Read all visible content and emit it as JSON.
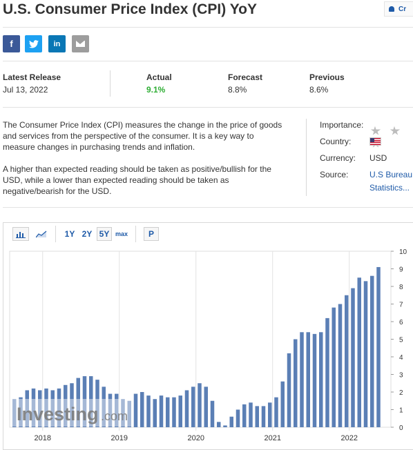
{
  "header": {
    "title": "U.S. Consumer Price Index (CPI) YoY",
    "alert_label": "Cr"
  },
  "share": {
    "facebook": "f",
    "twitter": "t",
    "linkedin": "in"
  },
  "release": {
    "latest_label": "Latest Release",
    "latest_value": "Jul 13, 2022",
    "actual_label": "Actual",
    "actual_value": "9.1%",
    "forecast_label": "Forecast",
    "forecast_value": "8.8%",
    "previous_label": "Previous",
    "previous_value": "8.6%"
  },
  "description": {
    "p1": "The Consumer Price Index (CPI) measures the change in the price of goods and services from the perspective of the consumer. It is a key way to measure changes in purchasing trends and inflation.",
    "p2": "A higher than expected reading should be taken as positive/bullish for the USD, while a lower than expected reading should be taken as negative/bearish for the USD."
  },
  "details": {
    "importance_label": "Importance:",
    "country_label": "Country:",
    "currency_label": "Currency:",
    "currency_value": "USD",
    "source_label": "Source:",
    "source_value_1": "U.S Bureau",
    "source_value_2": "Statistics..."
  },
  "toolbar": {
    "range_1y": "1Y",
    "range_2y": "2Y",
    "range_5y": "5Y",
    "range_max": "max",
    "p_button": "P",
    "selected_range": "5Y"
  },
  "watermark": {
    "brand": "Investing",
    "suffix": ".com"
  },
  "colors": {
    "bar": "#5b7fb5",
    "actual_green": "#2eae34",
    "link": "#1e5aa8"
  },
  "chart_data": {
    "type": "bar",
    "title": "",
    "x_tick_labels": [
      "2018",
      "2019",
      "2020",
      "2021",
      "2022"
    ],
    "x_tick_start_index": [
      5,
      17,
      29,
      41,
      53
    ],
    "y_ticks": [
      0,
      1,
      2,
      3,
      4,
      5,
      6,
      7,
      8,
      9,
      10
    ],
    "ylim": [
      0,
      10
    ],
    "grid": "vertical",
    "values": [
      1.6,
      1.7,
      2.1,
      2.2,
      2.1,
      2.2,
      2.1,
      2.2,
      2.4,
      2.5,
      2.8,
      2.9,
      2.9,
      2.7,
      2.3,
      1.9,
      1.9,
      1.6,
      1.5,
      1.9,
      2.0,
      1.8,
      1.6,
      1.8,
      1.7,
      1.7,
      1.8,
      2.1,
      2.3,
      2.5,
      2.3,
      1.5,
      0.3,
      0.1,
      0.6,
      1.0,
      1.3,
      1.4,
      1.2,
      1.2,
      1.4,
      1.7,
      2.6,
      4.2,
      5.0,
      5.4,
      5.4,
      5.3,
      5.4,
      6.2,
      6.8,
      7.0,
      7.5,
      7.9,
      8.5,
      8.3,
      8.6,
      9.1
    ]
  }
}
